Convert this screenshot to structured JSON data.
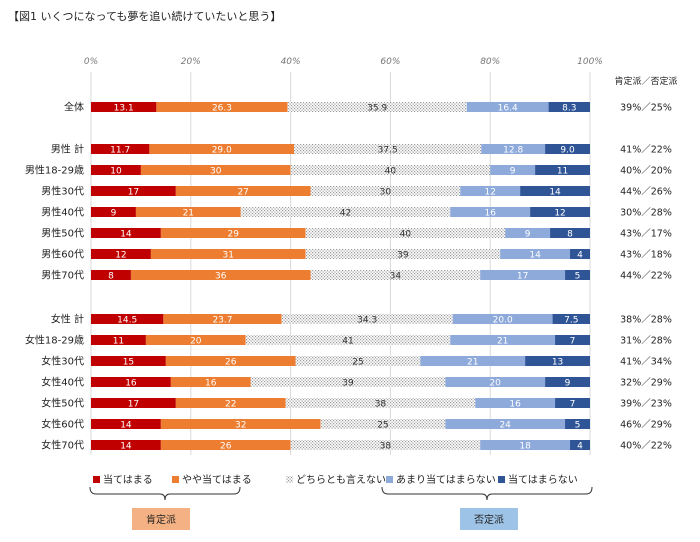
{
  "title": "【図1 いくつになっても夢を追い続けていたいと思う】",
  "summary_header": "肯定派／否定派",
  "chart_data": {
    "type": "bar",
    "orientation": "horizontal",
    "stacked": true,
    "xlim": [
      0,
      100
    ],
    "x_ticks": [
      "0%",
      "20%",
      "40%",
      "60%",
      "80%",
      "100%"
    ],
    "categories": [
      "全体",
      "男性 計",
      "男性18-29歳",
      "男性30代",
      "男性40代",
      "男性50代",
      "男性60代",
      "男性70代",
      "女性 計",
      "女性18-29歳",
      "女性30代",
      "女性40代",
      "女性50代",
      "女性60代",
      "女性70代"
    ],
    "value_labels": [
      [
        "13.1",
        "26.3",
        "35.9",
        "16.4",
        "8.3"
      ],
      [
        "11.7",
        "29.0",
        "37.5",
        "12.8",
        "9.0"
      ],
      [
        "10",
        "30",
        "40",
        "9",
        "11"
      ],
      [
        "17",
        "27",
        "30",
        "12",
        "14"
      ],
      [
        "9",
        "21",
        "42",
        "16",
        "12"
      ],
      [
        "14",
        "29",
        "40",
        "9",
        "8"
      ],
      [
        "12",
        "31",
        "39",
        "14",
        "4"
      ],
      [
        "8",
        "36",
        "34",
        "17",
        "5"
      ],
      [
        "14.5",
        "23.7",
        "34.3",
        "20.0",
        "7.5"
      ],
      [
        "11",
        "20",
        "41",
        "21",
        "7"
      ],
      [
        "15",
        "26",
        "25",
        "21",
        "13"
      ],
      [
        "16",
        "16",
        "39",
        "20",
        "9"
      ],
      [
        "17",
        "22",
        "38",
        "16",
        "7"
      ],
      [
        "14",
        "32",
        "25",
        "24",
        "5"
      ],
      [
        "14",
        "26",
        "38",
        "18",
        "4"
      ]
    ],
    "series": [
      {
        "name": "当てはまる",
        "color": "#c00000",
        "values": [
          13.1,
          11.7,
          10,
          17,
          9,
          14,
          12,
          8,
          14.5,
          11,
          15,
          16,
          17,
          14,
          14
        ]
      },
      {
        "name": "やや当てはまる",
        "color": "#ed7d31",
        "values": [
          26.3,
          29.0,
          30,
          27,
          21,
          29,
          31,
          36,
          23.7,
          20,
          26,
          16,
          22,
          32,
          26
        ]
      },
      {
        "name": "どちらとも言えない",
        "color": "#d9d9d9",
        "values": [
          35.9,
          37.5,
          40,
          30,
          42,
          40,
          39,
          34,
          34.3,
          41,
          25,
          39,
          38,
          25,
          38
        ]
      },
      {
        "name": "あまり当てはまらない",
        "color": "#8eaadb",
        "values": [
          16.4,
          12.8,
          9,
          12,
          16,
          9,
          14,
          17,
          20.0,
          21,
          21,
          20,
          16,
          24,
          18
        ]
      },
      {
        "name": "当てはまらない",
        "color": "#2f5597",
        "values": [
          8.3,
          9.0,
          11,
          14,
          12,
          8,
          4,
          5,
          7.5,
          7,
          13,
          9,
          7,
          5,
          4
        ]
      }
    ],
    "summary": [
      "39%／25%",
      "41%／22%",
      "40%／20%",
      "44%／26%",
      "30%／28%",
      "43%／17%",
      "43%／18%",
      "44%／22%",
      "38%／28%",
      "31%／28%",
      "41%／34%",
      "32%／29%",
      "39%／23%",
      "46%／29%",
      "40%／22%"
    ],
    "group_labels": [
      "肯定派",
      "否定派"
    ],
    "legend_position": "bottom"
  }
}
